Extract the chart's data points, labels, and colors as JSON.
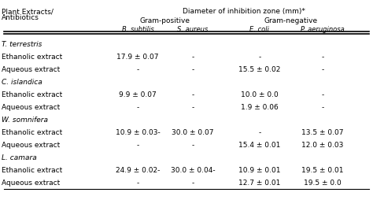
{
  "title_row1": "Diameter of inhibition zone (mm)*",
  "header_col": "Plant Extracts/\nAntibiotics",
  "gram_positive": "Gram-positive",
  "gram_negative": "Gram-negative",
  "col_headers": [
    "B. subtilis",
    "S. aureus",
    "E. coli",
    "P. aeruginosa"
  ],
  "rows": [
    {
      "label": "T. terrestris",
      "italic": true,
      "type": "section",
      "values": [
        "",
        "",
        "",
        ""
      ]
    },
    {
      "label": "Ethanolic extract",
      "italic": false,
      "type": "data",
      "values": [
        "17.9 ± 0.07",
        "-",
        "-",
        "-"
      ]
    },
    {
      "label": "Aqueous extract",
      "italic": false,
      "type": "data",
      "values": [
        "-",
        "-",
        "15.5 ± 0.02",
        "-"
      ]
    },
    {
      "label": "C. islandica",
      "italic": true,
      "type": "section",
      "values": [
        "",
        "",
        "",
        ""
      ]
    },
    {
      "label": "Ethanolic extract",
      "italic": false,
      "type": "data",
      "values": [
        "9.9 ± 0.07",
        "-",
        "10.0 ± 0.0",
        "-"
      ]
    },
    {
      "label": "Aqueous extract",
      "italic": false,
      "type": "data",
      "values": [
        "-",
        "-",
        "1.9 ± 0.06",
        "-"
      ]
    },
    {
      "label": "W. somnifera",
      "italic": true,
      "type": "section",
      "values": [
        "",
        "",
        "",
        ""
      ]
    },
    {
      "label": "Ethanolic extract",
      "italic": false,
      "type": "data",
      "values": [
        "10.9 ± 0.03-",
        "30.0 ± 0.07",
        "-",
        "13.5 ± 0.07"
      ]
    },
    {
      "label": "Aqueous extract",
      "italic": false,
      "type": "data",
      "values": [
        "-",
        "-",
        "15.4 ± 0.01",
        "12.0 ± 0.03"
      ]
    },
    {
      "label": "L. camara",
      "italic": true,
      "type": "section",
      "values": [
        "",
        "",
        "",
        ""
      ]
    },
    {
      "label": "Ethanolic extract",
      "italic": false,
      "type": "data",
      "values": [
        "24.9 ± 0.02-",
        "30.0 ± 0.04-",
        "10.9 ± 0.01",
        "19.5 ± 0.01"
      ]
    },
    {
      "label": "Aqueous extract",
      "italic": false,
      "type": "data",
      "values": [
        "-",
        "-",
        "12.7 ± 0.01",
        "19.5 ± 0.0"
      ]
    }
  ],
  "bg_color": "#ffffff",
  "text_color": "#000000",
  "line_color": "#000000"
}
